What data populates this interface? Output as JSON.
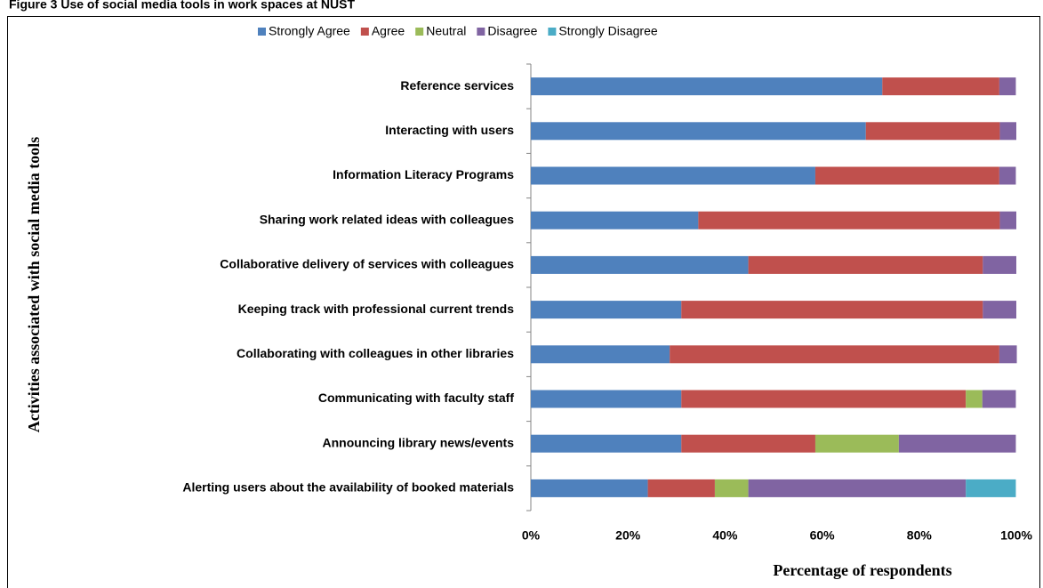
{
  "chart_data": {
    "type": "stacked_bar_horizontal",
    "title": "Figure 3 Use of social media tools in work spaces at NUST",
    "y_axis_label": "Activities associated with social media tools",
    "x_axis_label": "Percentage of respondents",
    "categories": [
      "Reference services",
      "Interacting with users",
      "Information Literacy Programs",
      "Sharing work related ideas with colleagues",
      "Collaborative delivery of services with colleagues",
      "Keeping track with professional current trends",
      "Collaborating with colleagues in other libraries",
      "Communicating with faculty staff",
      "Announcing library news/events",
      "Alerting users about the availability of booked materials"
    ],
    "series": [
      {
        "name": "Strongly Agree",
        "color": "#4f81bd",
        "values": [
          72.4,
          69.0,
          58.6,
          34.5,
          44.8,
          31.0,
          28.6,
          31.0,
          31.0,
          24.1
        ]
      },
      {
        "name": "Agree",
        "color": "#c0504d",
        "values": [
          24.1,
          27.6,
          37.9,
          62.1,
          48.3,
          62.1,
          67.9,
          58.6,
          27.6,
          13.8
        ]
      },
      {
        "name": "Neutral",
        "color": "#9bbb59",
        "values": [
          0,
          0,
          0,
          0,
          0,
          0,
          0,
          3.4,
          17.2,
          6.9
        ]
      },
      {
        "name": "Disagree",
        "color": "#8064a2",
        "values": [
          3.4,
          3.4,
          3.4,
          3.4,
          6.9,
          6.9,
          3.6,
          6.9,
          24.1,
          44.8
        ]
      },
      {
        "name": "Strongly Disagree",
        "color": "#4bacc6",
        "values": [
          0,
          0,
          0,
          0,
          0,
          0,
          0,
          0,
          0,
          10.3
        ]
      }
    ],
    "xlim": [
      0,
      100
    ],
    "xticks": [
      {
        "value": 0,
        "label": "0%"
      },
      {
        "value": 20,
        "label": "20%"
      },
      {
        "value": 40,
        "label": "40%"
      },
      {
        "value": 60,
        "label": "60%"
      },
      {
        "value": 80,
        "label": "80%"
      },
      {
        "value": 100,
        "label": "100%"
      }
    ],
    "grid": false,
    "legend": "top"
  }
}
